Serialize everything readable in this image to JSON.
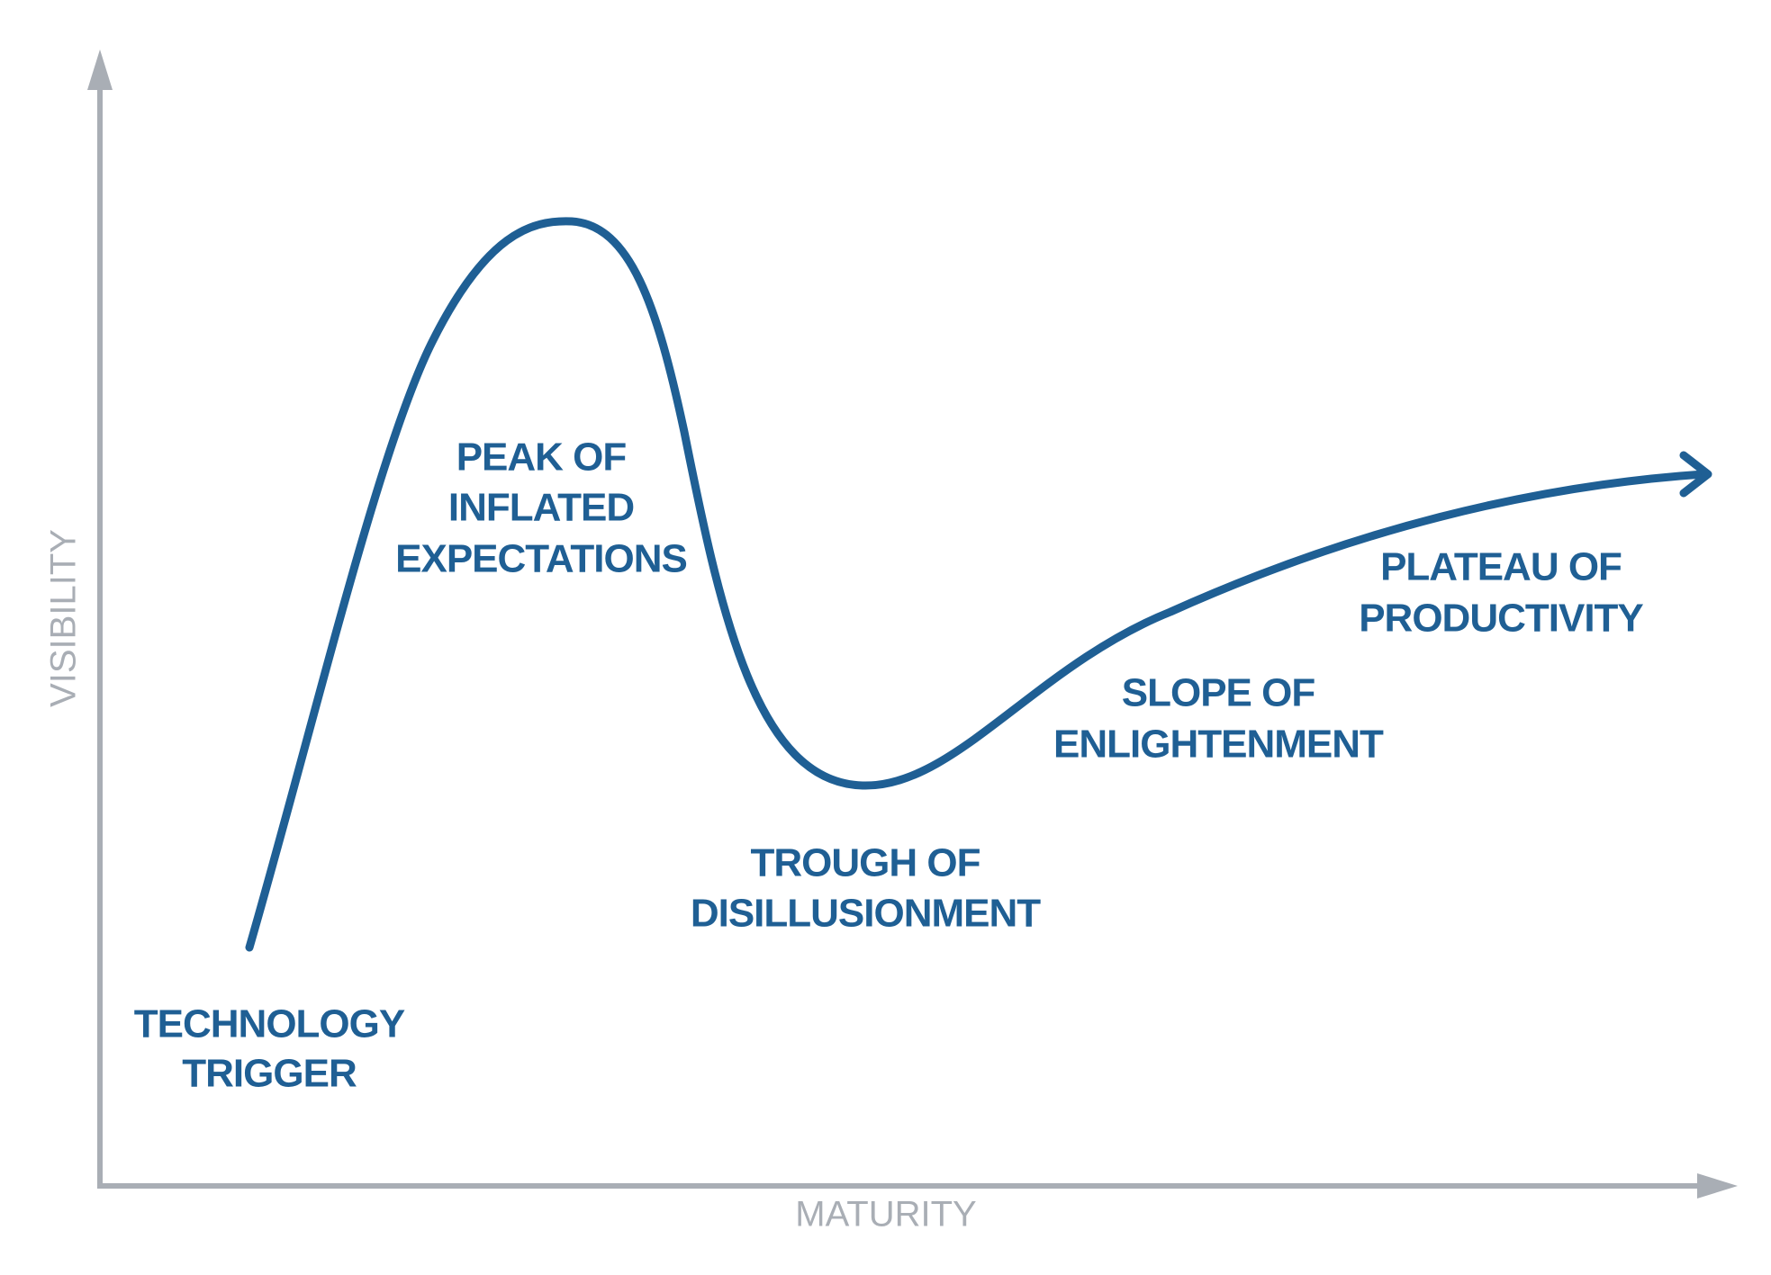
{
  "axes": {
    "x_label": "MATURITY",
    "y_label": "VISIBILITY"
  },
  "phases": [
    {
      "lines": [
        "TECHNOLOGY",
        "TRIGGER"
      ]
    },
    {
      "lines": [
        "PEAK OF",
        "INFLATED",
        "EXPECTATIONS"
      ]
    },
    {
      "lines": [
        "TROUGH OF",
        "DISILLUSIONMENT"
      ]
    },
    {
      "lines": [
        "SLOPE OF",
        "ENLIGHTENMENT"
      ]
    },
    {
      "lines": [
        "PLATEAU OF",
        "PRODUCTIVITY"
      ]
    }
  ]
}
